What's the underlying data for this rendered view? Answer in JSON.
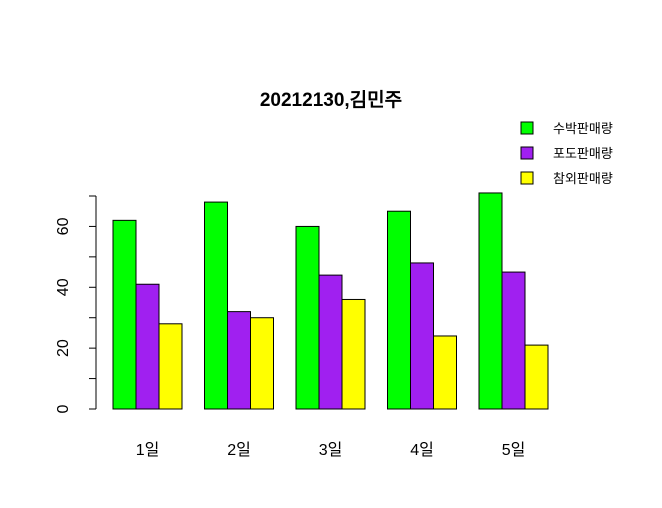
{
  "chart_data": {
    "type": "bar",
    "title": "20212130,김민주",
    "xlabel": "",
    "ylabel": "",
    "categories": [
      "1일",
      "2일",
      "3일",
      "4일",
      "5일"
    ],
    "series": [
      {
        "name": "수박판매량",
        "color": "#00ff00",
        "values": [
          62,
          68,
          60,
          65,
          71
        ]
      },
      {
        "name": "포도판매량",
        "color": "#a020f0",
        "values": [
          41,
          32,
          44,
          48,
          45
        ]
      },
      {
        "name": "참외판매량",
        "color": "#ffff00",
        "values": [
          28,
          30,
          36,
          24,
          21
        ]
      }
    ],
    "ylim": [
      0,
      70
    ],
    "yticks": [
      0,
      20,
      40,
      60
    ],
    "grid": false,
    "legend_position": "top-right"
  }
}
